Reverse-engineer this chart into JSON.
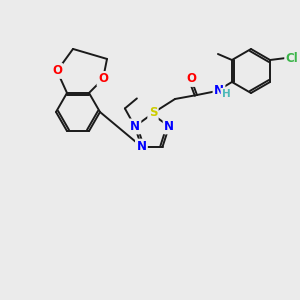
{
  "bg_color": "#ebebeb",
  "bond_color": "#1a1a1a",
  "atoms": {
    "Cl": {
      "color": "#3cb54a"
    },
    "O": {
      "color": "#ff0000"
    },
    "N": {
      "color": "#0000ff"
    },
    "S": {
      "color": "#cccc00"
    },
    "H": {
      "color": "#4db8b8"
    }
  },
  "lw": 1.4,
  "fs": 8.5
}
